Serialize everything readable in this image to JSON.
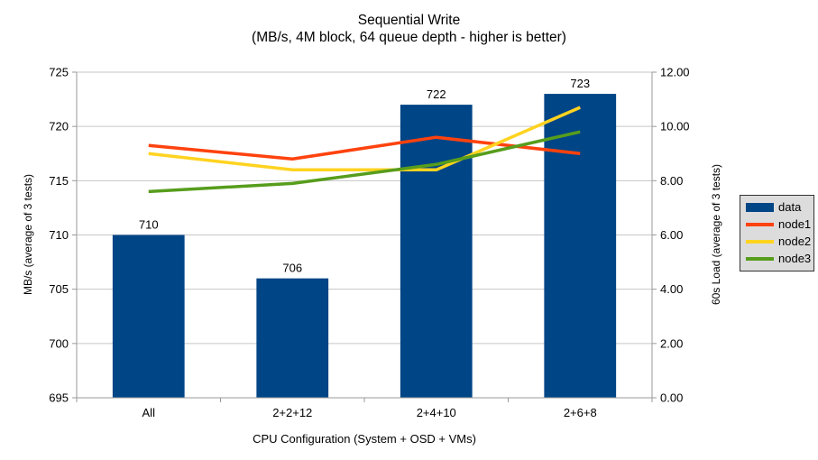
{
  "title": "Sequential Write",
  "subtitle": "(MB/s, 4M block, 64 queue depth - higher is better)",
  "chart_data": {
    "type": "bar+line",
    "title": "Sequential Write",
    "subtitle": "(MB/s, 4M block, 64 queue depth - higher is better)",
    "xlabel": "CPU Configuration (System + OSD + VMs)",
    "ylabel_left": "MB/s (average of 3 tests)",
    "ylabel_right": "60s Load (average of 3 tests)",
    "categories": [
      "All",
      "2+2+12",
      "2+4+10",
      "2+6+8"
    ],
    "series": [
      {
        "name": "data",
        "type": "bar",
        "axis": "left",
        "color": "#004586",
        "values": [
          710,
          706,
          722,
          723
        ],
        "data_labels": [
          "710",
          "706",
          "722",
          "723"
        ]
      },
      {
        "name": "node1",
        "type": "line",
        "axis": "right",
        "color": "#FF420E",
        "values": [
          9.3,
          8.8,
          9.6,
          9.0
        ]
      },
      {
        "name": "node2",
        "type": "line",
        "axis": "right",
        "color": "#FFD320",
        "values": [
          9.0,
          8.4,
          8.4,
          10.7
        ]
      },
      {
        "name": "node3",
        "type": "line",
        "axis": "right",
        "color": "#579D1C",
        "values": [
          7.6,
          7.9,
          8.6,
          9.8
        ]
      }
    ],
    "left_ylim": [
      695,
      725
    ],
    "right_ylim": [
      0,
      12
    ],
    "left_ticks": [
      "695",
      "700",
      "705",
      "710",
      "715",
      "720",
      "725"
    ],
    "right_ticks": [
      "0.00",
      "2.00",
      "4.00",
      "6.00",
      "8.00",
      "10.00",
      "12.00"
    ],
    "grid": true,
    "legend_position": "right",
    "colors": {
      "background": "#ffffff",
      "grid": "#c6c6c6",
      "axis": "#9a9a9a",
      "text": "#000000",
      "legend_bg": "#dcdcdc",
      "legend_border": "#333333"
    }
  }
}
